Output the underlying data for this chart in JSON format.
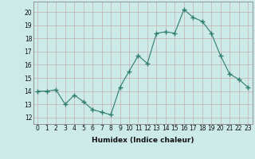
{
  "x": [
    0,
    1,
    2,
    3,
    4,
    5,
    6,
    7,
    8,
    9,
    10,
    11,
    12,
    13,
    14,
    15,
    16,
    17,
    18,
    19,
    20,
    21,
    22,
    23
  ],
  "y": [
    14.0,
    14.0,
    14.1,
    13.0,
    13.7,
    13.2,
    12.6,
    12.4,
    12.2,
    14.3,
    15.5,
    16.7,
    16.1,
    18.4,
    18.5,
    18.4,
    20.2,
    19.6,
    19.3,
    18.4,
    16.7,
    15.3,
    14.9,
    14.3
  ],
  "xlabel": "Humidex (Indice chaleur)",
  "ylim": [
    11.5,
    20.8
  ],
  "xlim": [
    -0.5,
    23.5
  ],
  "line_color": "#2e7d6e",
  "marker": "+",
  "marker_size": 4,
  "bg_color": "#cceae7",
  "grid_color": "#c8b8b8",
  "yticks": [
    12,
    13,
    14,
    15,
    16,
    17,
    18,
    19,
    20
  ],
  "xticks": [
    0,
    1,
    2,
    3,
    4,
    5,
    6,
    7,
    8,
    9,
    10,
    11,
    12,
    13,
    14,
    15,
    16,
    17,
    18,
    19,
    20,
    21,
    22,
    23
  ],
  "tick_fontsize": 5.5,
  "xlabel_fontsize": 6.5
}
